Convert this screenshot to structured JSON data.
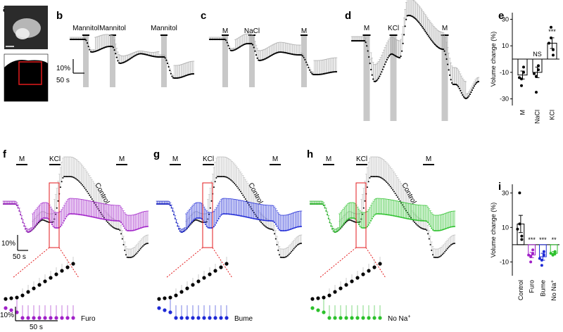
{
  "panels": {
    "a": "a",
    "b": "b",
    "c": "c",
    "d": "d",
    "e": "e",
    "f": "f",
    "g": "g",
    "h": "h",
    "i": "i"
  },
  "stimuli": {
    "b": [
      "Mannitol",
      "Mannitol",
      "Mannitol"
    ],
    "c": [
      "M",
      "NaCl",
      "M"
    ],
    "d": [
      "M",
      "KCl",
      "M"
    ],
    "f": [
      "M",
      "KCl",
      "M"
    ],
    "g": [
      "M",
      "KCl",
      "M"
    ],
    "h": [
      "M",
      "KCl",
      "M"
    ]
  },
  "scalebars": {
    "b_y": "10%",
    "b_x": "50 s",
    "f_y": "10%",
    "f_x": "50 s",
    "zoom_y": "10%",
    "zoom_x": "50 s"
  },
  "trace_labels": {
    "f_control": "Control",
    "g_control": "Control",
    "h_control": "Control",
    "f_zoom": "Furo",
    "g_zoom": "Bume",
    "h_zoom_main": "No Na",
    "h_zoom_sup": "+"
  },
  "colors": {
    "black": "#000000",
    "red": "#e31a1c",
    "furo": "#a020c8",
    "bume": "#1f2ad6",
    "nona": "#2cc12c",
    "bar": "#c8c8c8"
  },
  "chart_data": [
    {
      "panel": "e",
      "type": "bar",
      "ylabel": "Volume change (%)",
      "ylim": [
        -35,
        35
      ],
      "yticks": [
        -30,
        -10,
        10,
        30
      ],
      "categories": [
        "M",
        "NaCl",
        "KCl"
      ],
      "values": [
        -12,
        -10,
        12
      ],
      "errors": [
        3,
        4,
        4
      ],
      "points": [
        [
          -6,
          -10,
          -14,
          -15,
          -20
        ],
        [
          -5,
          -8,
          -11,
          -13,
          -25
        ],
        [
          3,
          7,
          12,
          16,
          24
        ]
      ],
      "annotations": [
        "",
        "NS",
        "***"
      ]
    },
    {
      "panel": "i",
      "type": "bar",
      "ylabel": "Volume change (%)",
      "ylim": [
        -18,
        35
      ],
      "yticks": [
        -10,
        10,
        30
      ],
      "categories": [
        "Control",
        "Furo",
        "Bume",
        "No Na+"
      ],
      "values": [
        12,
        -6,
        -7,
        -5
      ],
      "errors": [
        5,
        1.5,
        2,
        1
      ],
      "points": [
        [
          3,
          5,
          9,
          12,
          30
        ],
        [
          -3,
          -5,
          -6,
          -7,
          -10
        ],
        [
          -4,
          -6,
          -8,
          -9,
          -12
        ],
        [
          -4,
          -5,
          -5,
          -6,
          -6
        ]
      ],
      "annotations": [
        "",
        "***",
        "***",
        "**"
      ]
    }
  ]
}
